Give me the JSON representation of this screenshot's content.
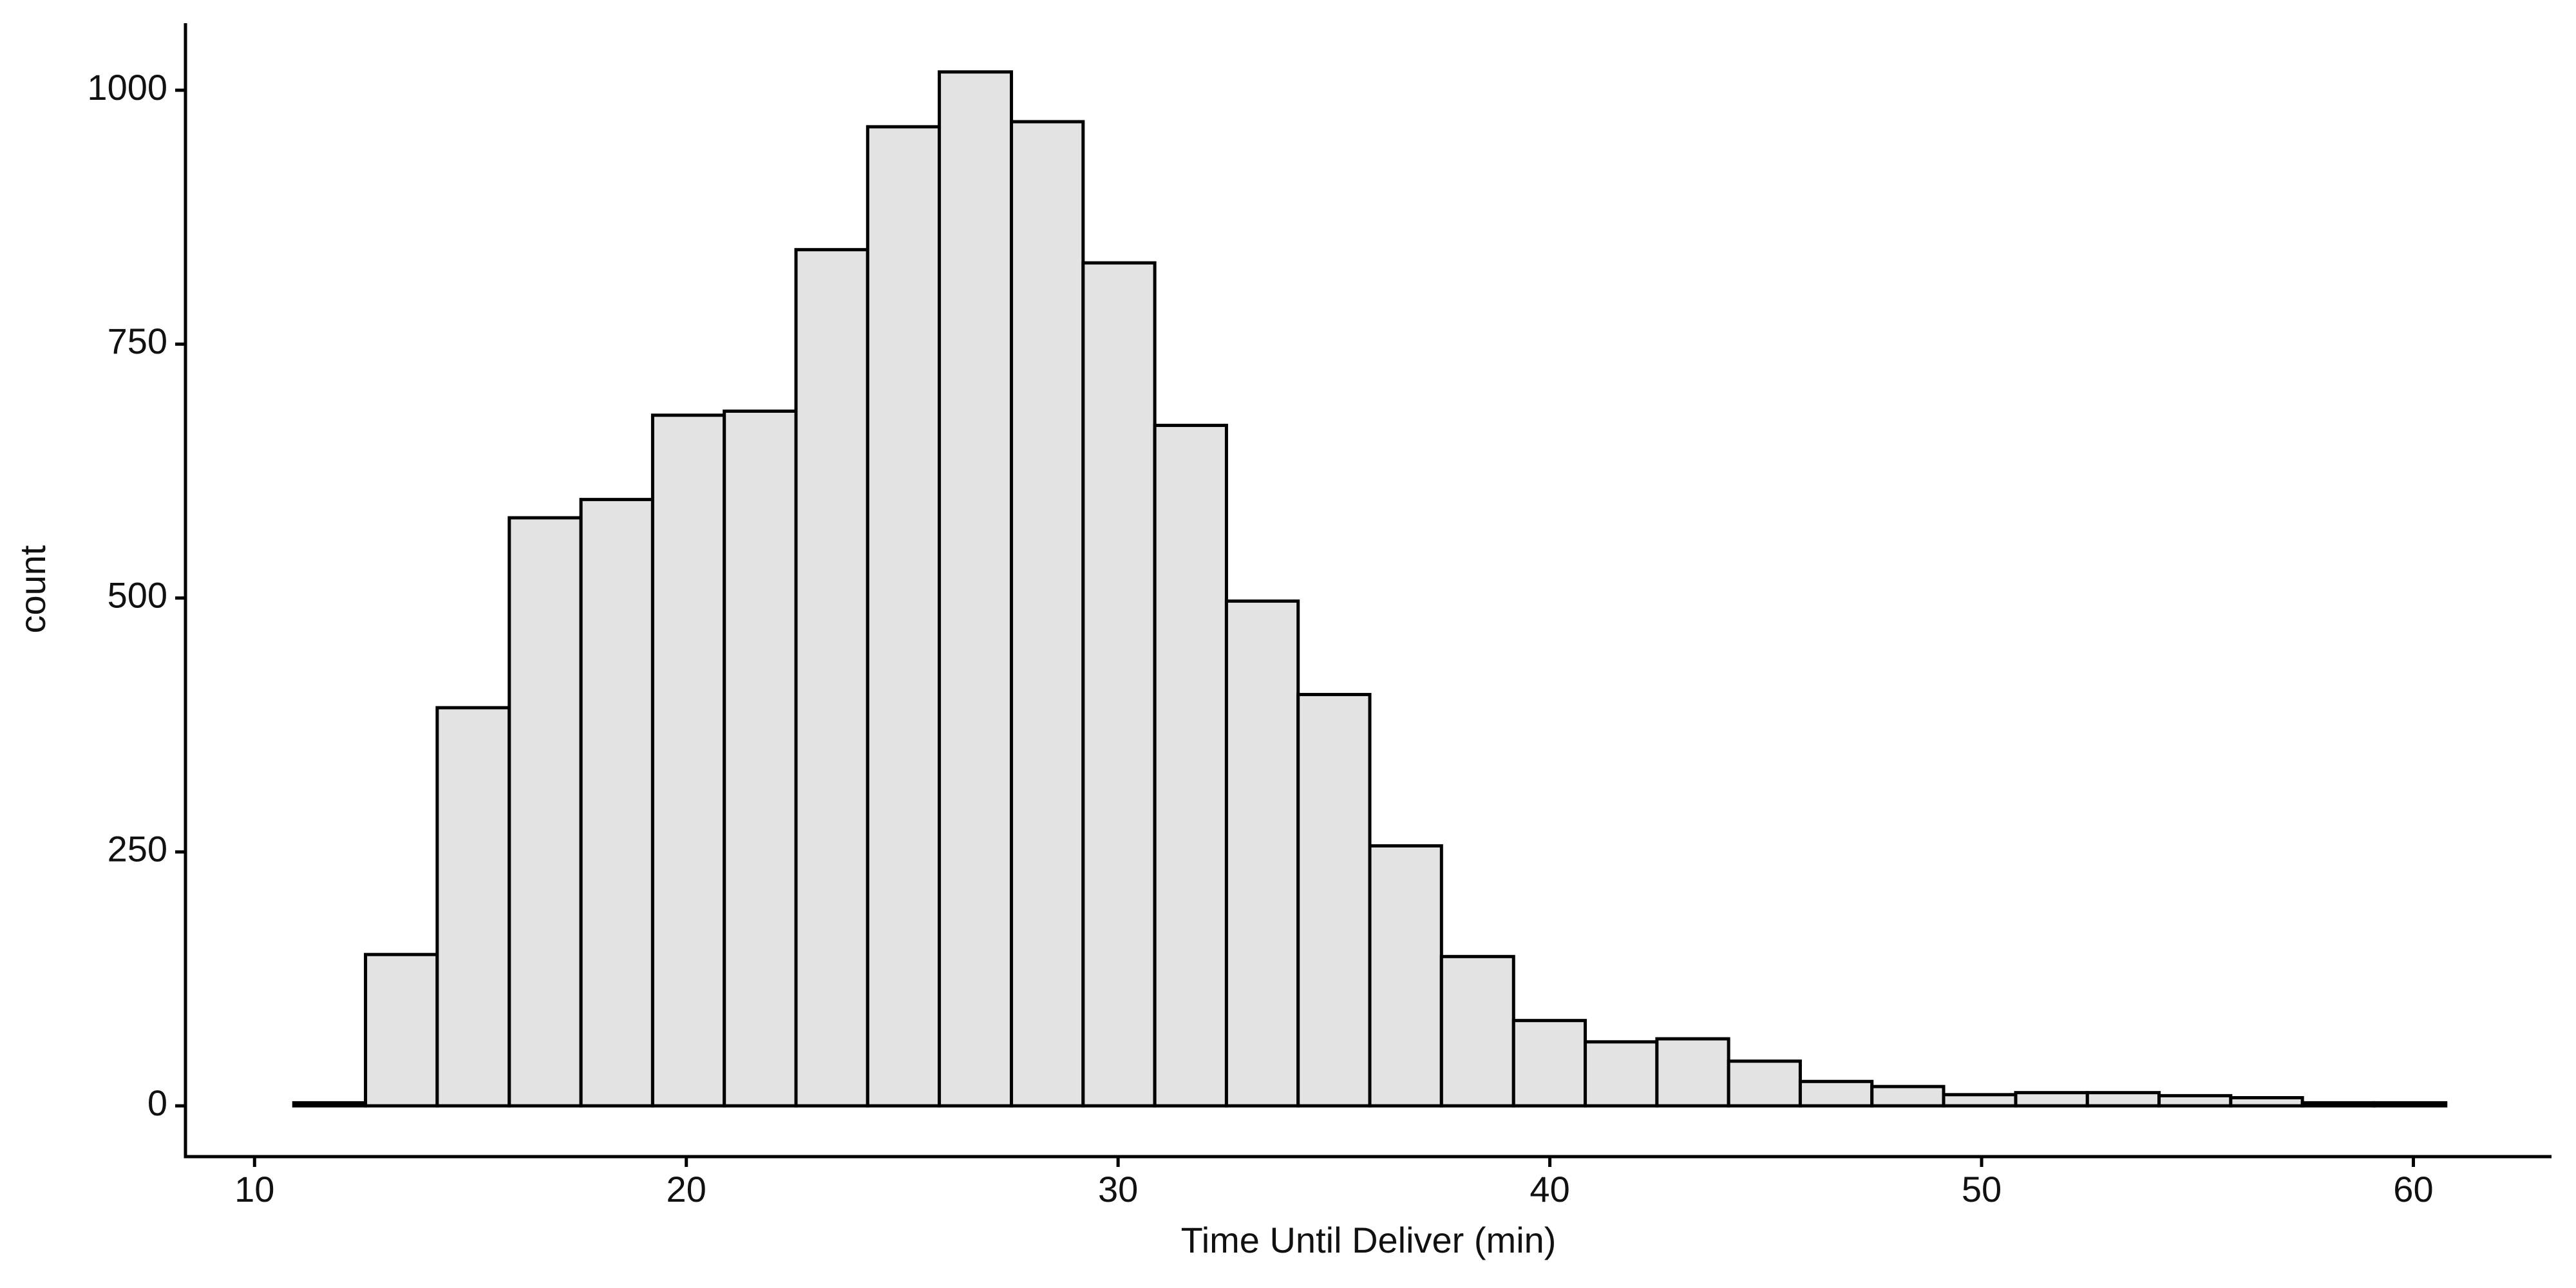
{
  "chart_data": {
    "type": "histogram",
    "x_label": "Time Until Deliver (min)",
    "y_label": "count",
    "bins": [
      10.91,
      12.57,
      14.23,
      15.9,
      17.56,
      19.22,
      20.88,
      22.54,
      24.2,
      25.86,
      27.53,
      29.19,
      30.85,
      32.51,
      34.17,
      35.83,
      37.49,
      39.16,
      40.82,
      42.48,
      44.14,
      45.8,
      47.46,
      49.12,
      50.79,
      52.45,
      54.11,
      55.77,
      57.43,
      59.09,
      60.75
    ],
    "values": [
      3,
      149,
      392,
      579,
      597,
      680,
      684,
      843,
      964,
      1018,
      969,
      830,
      670,
      497,
      405,
      256,
      147,
      84,
      63,
      66,
      44,
      24,
      19,
      11,
      13,
      13,
      10,
      8,
      3,
      3
    ],
    "color": "#e3e3e3",
    "edge_color": "#000000",
    "xlim": [
      8.4,
      63.2
    ],
    "xticks": [
      10,
      20,
      30,
      40,
      50,
      60
    ],
    "ylim": [
      -50,
      1066
    ],
    "yticks": [
      0,
      250,
      500,
      750,
      1000
    ],
    "grid": false
  }
}
